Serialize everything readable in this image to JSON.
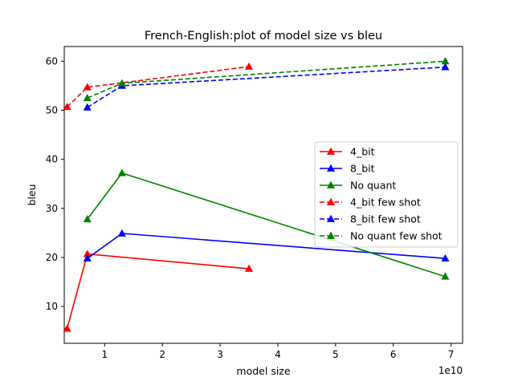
{
  "chart_data": {
    "type": "line",
    "title": "French-English:plot of model size vs bleu",
    "xlabel": "model size",
    "ylabel": "bleu",
    "x_offset_label": "1e10",
    "xlim": [
      0.3,
      7.2
    ],
    "ylim": [
      2.5,
      63
    ],
    "x_ticks": [
      1,
      2,
      3,
      4,
      5,
      6,
      7
    ],
    "y_ticks": [
      10,
      20,
      30,
      40,
      50,
      60
    ],
    "grid": false,
    "legend_position": "center-right",
    "series": [
      {
        "name": "4_bit",
        "color": "#ff0000",
        "dashed": false,
        "marker": "triangle",
        "x": [
          0.35,
          0.7,
          3.5
        ],
        "y": [
          5.5,
          20.7,
          17.7
        ]
      },
      {
        "name": "8_bit",
        "color": "#0000ff",
        "dashed": false,
        "marker": "triangle",
        "x": [
          0.7,
          1.3,
          6.9
        ],
        "y": [
          19.8,
          24.9,
          19.8
        ]
      },
      {
        "name": "No quant",
        "color": "#008000",
        "dashed": false,
        "marker": "triangle",
        "x": [
          0.7,
          1.3,
          6.9
        ],
        "y": [
          27.8,
          37.2,
          16.1
        ]
      },
      {
        "name": "4_bit few shot",
        "color": "#ff0000",
        "dashed": true,
        "marker": "triangle",
        "x": [
          0.35,
          0.7,
          3.5
        ],
        "y": [
          50.7,
          54.7,
          58.9
        ]
      },
      {
        "name": "8_bit few shot",
        "color": "#0000ff",
        "dashed": true,
        "marker": "triangle",
        "x": [
          0.7,
          1.3,
          6.9
        ],
        "y": [
          50.6,
          55.0,
          58.8
        ]
      },
      {
        "name": "No quant few shot",
        "color": "#008000",
        "dashed": true,
        "marker": "triangle",
        "x": [
          0.7,
          1.3,
          6.9
        ],
        "y": [
          52.5,
          55.5,
          60.0
        ]
      }
    ]
  }
}
